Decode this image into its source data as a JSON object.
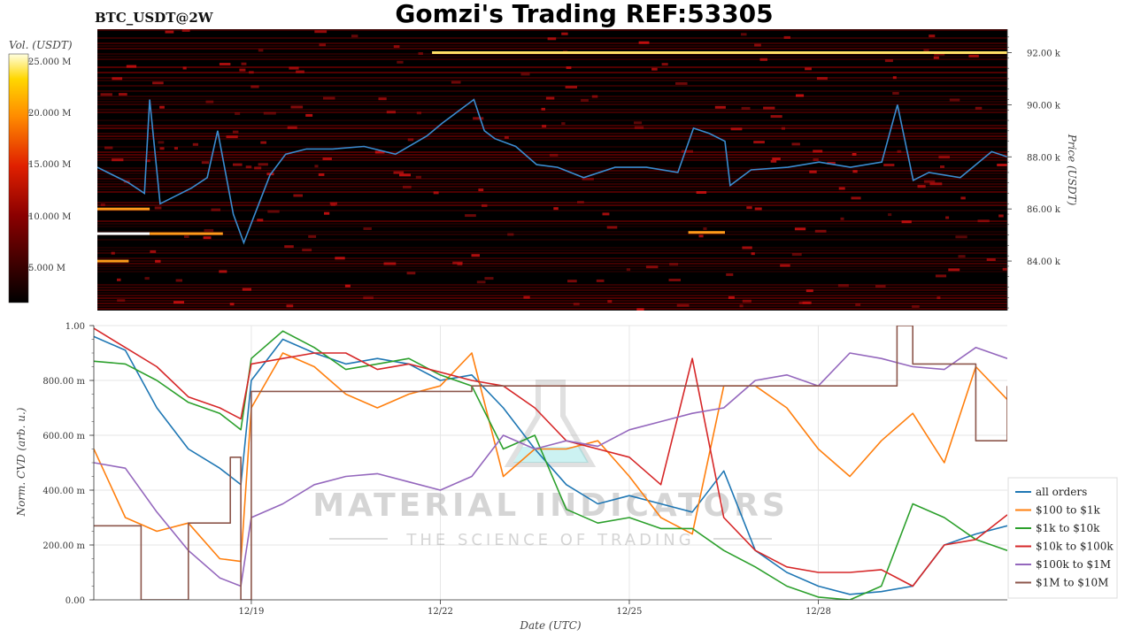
{
  "header": {
    "ticker": "BTC_USDT@2W",
    "title": "Gomzi's Trading REF:53305"
  },
  "colorbar": {
    "label": "Vol. (USDT)",
    "ticks": [
      "25.000 M",
      "20.000 M",
      "15.000 M",
      "10.000 M",
      "5.000 M"
    ]
  },
  "watermark": {
    "line1": "MATERIAL INDICATORS",
    "line2": "THE SCIENCE OF TRADING"
  },
  "colors": {
    "all orders": "#1f77b4",
    "$100 to $1k": "#ff7f0e",
    "$1k to $10k": "#2ca02c",
    "$10k to $100k": "#d62728",
    "$100k to $1M": "#9467bd",
    "$1M to $10M": "#8c564b",
    "heatmap_bg": "#000000",
    "price_line": "#3a8cd0"
  },
  "chart_data": [
    {
      "type": "heatmap",
      "title": "",
      "ylabel": "Price (USDT)",
      "y_ticks": [
        "92.00 k",
        "90.00 k",
        "88.00 k",
        "86.00 k",
        "84.00 k"
      ],
      "y_tick_values": [
        92000,
        90000,
        88000,
        86000,
        84000
      ],
      "ylim": [
        82100,
        92900
      ],
      "xlim": [
        "12/16 12:00",
        "12/31 00:00"
      ],
      "walls": [
        {
          "price": 92000,
          "start": "12/21 20:00",
          "end": "12/31 00:00",
          "intensity": 0.95
        },
        {
          "price": 85050,
          "start": "12/16 12:00",
          "end": "12/17 08:00",
          "intensity": 1.0
        },
        {
          "price": 85050,
          "start": "12/17 08:00",
          "end": "12/18 12:00",
          "intensity": 0.75
        },
        {
          "price": 86000,
          "start": "12/16 12:00",
          "end": "12/17 08:00",
          "intensity": 0.7
        },
        {
          "price": 84000,
          "start": "12/16 12:00",
          "end": "12/17 00:00",
          "intensity": 0.7
        },
        {
          "price": 85100,
          "start": "12/25 22:00",
          "end": "12/26 12:00",
          "intensity": 0.7
        }
      ],
      "price_series": {
        "name": "price",
        "x": [
          "12/16 12:00",
          "12/17 00:00",
          "12/17 06:00",
          "12/17 08:00",
          "12/17 12:00",
          "12/18 00:00",
          "12/18 06:00",
          "12/18 10:00",
          "12/18 16:00",
          "12/18 20:00",
          "12/19 06:00",
          "12/19 12:00",
          "12/19 20:00",
          "12/20 06:00",
          "12/20 18:00",
          "12/21 06:00",
          "12/21 18:00",
          "12/22 00:00",
          "12/22 12:00",
          "12/22 16:00",
          "12/22 20:00",
          "12/23 04:00",
          "12/23 12:00",
          "12/23 20:00",
          "12/24 06:00",
          "12/24 18:00",
          "12/25 06:00",
          "12/25 18:00",
          "12/26 00:00",
          "12/26 06:00",
          "12/26 12:00",
          "12/26 14:00",
          "12/26 22:00",
          "12/27 12:00",
          "12/28 00:00",
          "12/28 12:00",
          "12/29 00:00",
          "12/29 06:00",
          "12/29 12:00",
          "12/29 18:00",
          "12/30 06:00",
          "12/30 18:00",
          "12/31 00:00"
        ],
        "y": [
          87600,
          87000,
          86600,
          90200,
          86200,
          86800,
          87200,
          89000,
          85800,
          84700,
          87300,
          88100,
          88300,
          88300,
          88400,
          88100,
          88800,
          89300,
          90200,
          89000,
          88700,
          88400,
          87700,
          87600,
          87200,
          87600,
          87600,
          87400,
          89100,
          88900,
          88600,
          86900,
          87500,
          87600,
          87800,
          87600,
          87800,
          90000,
          87100,
          87400,
          87200,
          88200,
          88000
        ]
      }
    },
    {
      "type": "line",
      "title": "",
      "xlabel": "Date (UTC)",
      "ylabel": "Norm. CVD (arb. u.)",
      "ylim": [
        0,
        1
      ],
      "y_ticks": [
        "1.00",
        "800.00 m",
        "600.00 m",
        "400.00 m",
        "200.00 m",
        "0.00"
      ],
      "x_ticks": [
        "12/19",
        "12/22",
        "12/25",
        "12/28"
      ],
      "xlim": [
        "12/16 12:00",
        "12/31 00:00"
      ],
      "legend": "right",
      "grid": true,
      "series": [
        {
          "name": "all orders",
          "x": [
            "12/16 12:00",
            "12/17 00:00",
            "12/17 12:00",
            "12/18 00:00",
            "12/18 12:00",
            "12/18 20:00",
            "12/19 00:00",
            "12/19 12:00",
            "12/20 00:00",
            "12/20 12:00",
            "12/21 00:00",
            "12/21 12:00",
            "12/22 00:00",
            "12/22 12:00",
            "12/23 00:00",
            "12/23 12:00",
            "12/24 00:00",
            "12/24 12:00",
            "12/25 00:00",
            "12/25 12:00",
            "12/26 00:00",
            "12/26 12:00",
            "12/27 00:00",
            "12/27 12:00",
            "12/28 00:00",
            "12/28 12:00",
            "12/29 00:00",
            "12/29 12:00",
            "12/30 00:00",
            "12/30 12:00",
            "12/31 00:00"
          ],
          "y": [
            0.96,
            0.91,
            0.7,
            0.55,
            0.48,
            0.42,
            0.8,
            0.95,
            0.9,
            0.86,
            0.88,
            0.86,
            0.8,
            0.82,
            0.7,
            0.55,
            0.42,
            0.35,
            0.38,
            0.35,
            0.32,
            0.47,
            0.18,
            0.1,
            0.05,
            0.02,
            0.03,
            0.05,
            0.2,
            0.24,
            0.27
          ]
        },
        {
          "name": "$100 to $1k",
          "x": [
            "12/16 12:00",
            "12/17 00:00",
            "12/17 12:00",
            "12/18 00:00",
            "12/18 12:00",
            "12/18 20:00",
            "12/19 00:00",
            "12/19 12:00",
            "12/20 00:00",
            "12/20 12:00",
            "12/21 00:00",
            "12/21 12:00",
            "12/22 00:00",
            "12/22 12:00",
            "12/23 00:00",
            "12/23 12:00",
            "12/24 00:00",
            "12/24 12:00",
            "12/25 00:00",
            "12/25 12:00",
            "12/26 00:00",
            "12/26 12:00",
            "12/27 00:00",
            "12/27 12:00",
            "12/28 00:00",
            "12/28 12:00",
            "12/29 00:00",
            "12/29 12:00",
            "12/30 00:00",
            "12/30 12:00",
            "12/31 00:00"
          ],
          "y": [
            0.55,
            0.3,
            0.25,
            0.28,
            0.15,
            0.14,
            0.7,
            0.9,
            0.85,
            0.75,
            0.7,
            0.75,
            0.78,
            0.9,
            0.45,
            0.55,
            0.55,
            0.58,
            0.45,
            0.3,
            0.24,
            0.78,
            0.78,
            0.7,
            0.55,
            0.45,
            0.58,
            0.68,
            0.5,
            0.85,
            0.73
          ]
        },
        {
          "name": "$1k to $10k",
          "x": [
            "12/16 12:00",
            "12/17 00:00",
            "12/17 12:00",
            "12/18 00:00",
            "12/18 12:00",
            "12/18 20:00",
            "12/19 00:00",
            "12/19 12:00",
            "12/20 00:00",
            "12/20 12:00",
            "12/21 00:00",
            "12/21 12:00",
            "12/22 00:00",
            "12/22 12:00",
            "12/23 00:00",
            "12/23 12:00",
            "12/24 00:00",
            "12/24 12:00",
            "12/25 00:00",
            "12/25 12:00",
            "12/26 00:00",
            "12/26 12:00",
            "12/27 00:00",
            "12/27 12:00",
            "12/28 00:00",
            "12/28 12:00",
            "12/29 00:00",
            "12/29 12:00",
            "12/30 00:00",
            "12/30 12:00",
            "12/31 00:00"
          ],
          "y": [
            0.87,
            0.86,
            0.8,
            0.72,
            0.68,
            0.62,
            0.88,
            0.98,
            0.92,
            0.84,
            0.86,
            0.88,
            0.82,
            0.78,
            0.55,
            0.6,
            0.33,
            0.28,
            0.3,
            0.26,
            0.26,
            0.18,
            0.12,
            0.05,
            0.01,
            0.0,
            0.05,
            0.35,
            0.3,
            0.22,
            0.18
          ]
        },
        {
          "name": "$10k to $100k",
          "x": [
            "12/16 12:00",
            "12/17 00:00",
            "12/17 12:00",
            "12/18 00:00",
            "12/18 12:00",
            "12/18 20:00",
            "12/19 00:00",
            "12/19 12:00",
            "12/20 00:00",
            "12/20 12:00",
            "12/21 00:00",
            "12/21 12:00",
            "12/22 00:00",
            "12/22 12:00",
            "12/23 00:00",
            "12/23 12:00",
            "12/24 00:00",
            "12/24 12:00",
            "12/25 00:00",
            "12/25 12:00",
            "12/26 00:00",
            "12/26 12:00",
            "12/27 00:00",
            "12/27 12:00",
            "12/28 00:00",
            "12/28 12:00",
            "12/29 00:00",
            "12/29 12:00",
            "12/30 00:00",
            "12/30 12:00",
            "12/31 00:00"
          ],
          "y": [
            0.99,
            0.92,
            0.85,
            0.74,
            0.7,
            0.66,
            0.86,
            0.88,
            0.9,
            0.9,
            0.84,
            0.86,
            0.83,
            0.8,
            0.78,
            0.7,
            0.58,
            0.55,
            0.52,
            0.42,
            0.88,
            0.3,
            0.18,
            0.12,
            0.1,
            0.1,
            0.11,
            0.05,
            0.2,
            0.22,
            0.31
          ]
        },
        {
          "name": "$100k to $1M",
          "x": [
            "12/16 12:00",
            "12/17 00:00",
            "12/17 12:00",
            "12/18 00:00",
            "12/18 12:00",
            "12/18 20:00",
            "12/19 00:00",
            "12/19 12:00",
            "12/20 00:00",
            "12/20 12:00",
            "12/21 00:00",
            "12/21 12:00",
            "12/22 00:00",
            "12/22 12:00",
            "12/23 00:00",
            "12/23 12:00",
            "12/24 00:00",
            "12/24 12:00",
            "12/25 00:00",
            "12/25 12:00",
            "12/26 00:00",
            "12/26 12:00",
            "12/27 00:00",
            "12/27 12:00",
            "12/28 00:00",
            "12/28 12:00",
            "12/29 00:00",
            "12/29 12:00",
            "12/30 00:00",
            "12/30 12:00",
            "12/31 00:00"
          ],
          "y": [
            0.5,
            0.48,
            0.32,
            0.18,
            0.08,
            0.05,
            0.3,
            0.35,
            0.42,
            0.45,
            0.46,
            0.43,
            0.4,
            0.45,
            0.6,
            0.55,
            0.58,
            0.56,
            0.62,
            0.65,
            0.68,
            0.7,
            0.8,
            0.82,
            0.78,
            0.9,
            0.88,
            0.85,
            0.84,
            0.92,
            0.88
          ]
        },
        {
          "name": "$1M to $10M",
          "x": [
            "12/16 12:00",
            "12/17 00:00",
            "12/17 06:00",
            "12/17 12:00",
            "12/18 00:00",
            "12/18 08:00",
            "12/18 16:00",
            "12/18 20:00",
            "12/19 00:00",
            "12/20 00:00",
            "12/21 00:00",
            "12/22 00:00",
            "12/22 12:00",
            "12/23 12:00",
            "12/24 00:00",
            "12/25 00:00",
            "12/26 00:00",
            "12/26 12:00",
            "12/27 00:00",
            "12/28 00:00",
            "12/29 00:00",
            "12/29 06:00",
            "12/29 12:00",
            "12/30 00:00",
            "12/30 12:00",
            "12/31 00:00"
          ],
          "y": [
            0.27,
            0.27,
            0.0,
            0.0,
            0.28,
            0.28,
            0.52,
            0.0,
            0.76,
            0.76,
            0.76,
            0.76,
            0.78,
            0.78,
            0.78,
            0.78,
            0.78,
            0.78,
            0.78,
            0.78,
            0.78,
            1.0,
            0.86,
            0.86,
            0.58,
            0.78
          ]
        }
      ]
    }
  ]
}
